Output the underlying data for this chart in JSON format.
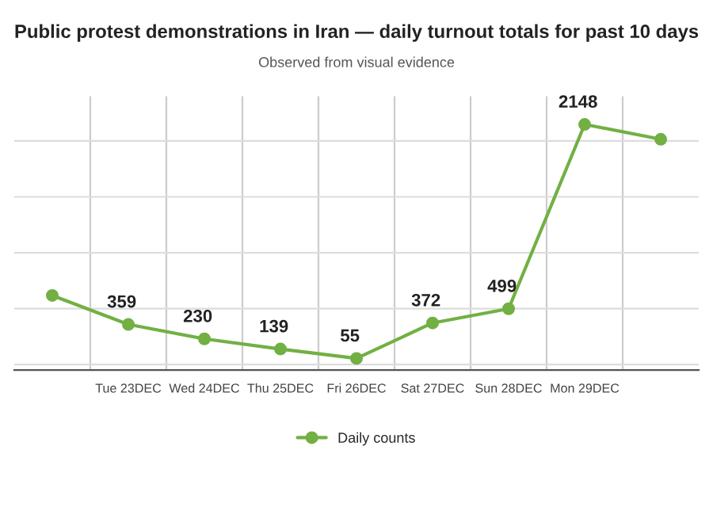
{
  "chart_data": {
    "type": "line",
    "title": "Public protest demonstrations in Iran — daily turnout totals for past 10 days",
    "subtitle": "Observed from visual evidence",
    "categories": [
      null,
      "Tue 23DEC",
      "Wed 24DEC",
      "Thu 25DEC",
      "Fri 26DEC",
      "Sat 27DEC",
      "Sun 28DEC",
      "Mon 29DEC",
      null
    ],
    "series": [
      {
        "name": "Daily counts",
        "color": "#72b043",
        "values": [
          618,
          359,
          230,
          139,
          55,
          372,
          499,
          2148,
          2015
        ],
        "value_labels": [
          null,
          "359",
          "230",
          "139",
          "55",
          "372",
          "499",
          "2148",
          null
        ]
      }
    ],
    "marker": "circle",
    "grid": true,
    "legend": "bottom",
    "tick_labels": "x"
  }
}
